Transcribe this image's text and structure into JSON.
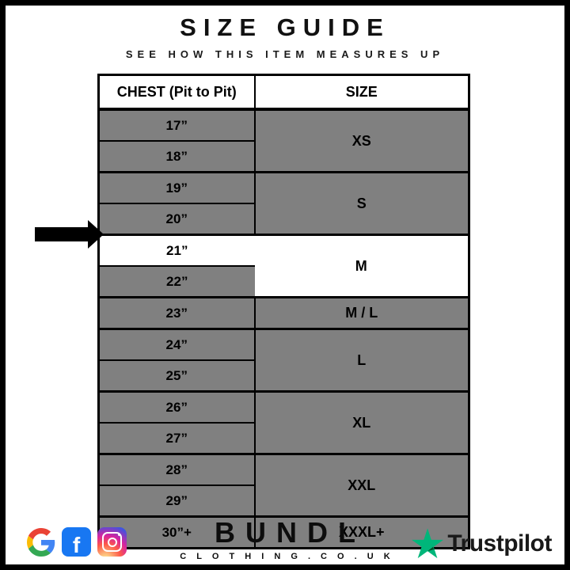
{
  "title": "SIZE GUIDE",
  "subtitle": "SEE HOW THIS ITEM MEASURES UP",
  "table": {
    "col1_header": "CHEST (Pit to Pit)",
    "col2_header": "SIZE",
    "row_bg": "#808080",
    "highlight_bg": "#ffffff",
    "groups": [
      {
        "size": "XS",
        "measurements": [
          "17”",
          "18”"
        ],
        "highlighted": false
      },
      {
        "size": "S",
        "measurements": [
          "19”",
          "20”"
        ],
        "highlighted": false
      },
      {
        "size": "M",
        "measurements": [
          "21”",
          "22”"
        ],
        "highlighted": true,
        "highlighted_measurement": "21”"
      },
      {
        "size": "M / L",
        "measurements": [
          "23”"
        ],
        "highlighted": false
      },
      {
        "size": "L",
        "measurements": [
          "24”",
          "25”"
        ],
        "highlighted": false
      },
      {
        "size": "XL",
        "measurements": [
          "26”",
          "27”"
        ],
        "highlighted": false
      },
      {
        "size": "XXL",
        "measurements": [
          "28”",
          "29”"
        ],
        "highlighted": false
      },
      {
        "size": "XXXL+",
        "measurements": [
          "30”+"
        ],
        "highlighted": false
      }
    ]
  },
  "chart_data": {
    "type": "table",
    "title": "SIZE GUIDE",
    "subtitle": "SEE HOW THIS ITEM MEASURES UP",
    "columns": [
      "CHEST (Pit to Pit)",
      "SIZE"
    ],
    "rows": [
      [
        "17”",
        "XS"
      ],
      [
        "18”",
        "XS"
      ],
      [
        "19”",
        "S"
      ],
      [
        "20”",
        "S"
      ],
      [
        "21”",
        "M"
      ],
      [
        "22”",
        "M"
      ],
      [
        "23”",
        "M / L"
      ],
      [
        "24”",
        "L"
      ],
      [
        "25”",
        "L"
      ],
      [
        "26”",
        "XL"
      ],
      [
        "27”",
        "XL"
      ],
      [
        "28”",
        "XXL"
      ],
      [
        "29”",
        "XXL"
      ],
      [
        "30”+",
        "XXXL+"
      ]
    ],
    "highlighted_row": "21”",
    "annotation": "black arrow pointing at the 21” / M row"
  },
  "footer": {
    "facebook_letter": "f",
    "brand": "BUNDL",
    "brand_sub": "C L O T H I N G . C O . U K",
    "trustpilot_label": "Trustpilot",
    "icons": [
      "google-icon",
      "facebook-icon",
      "instagram-icon",
      "trustpilot-star-icon"
    ]
  },
  "colors": {
    "table_gray": "#808080",
    "highlight_white": "#ffffff",
    "border_black": "#000000",
    "facebook_blue": "#1877F2",
    "trustpilot_green": "#00B67A",
    "trustpilot_dark_green": "#005128"
  }
}
